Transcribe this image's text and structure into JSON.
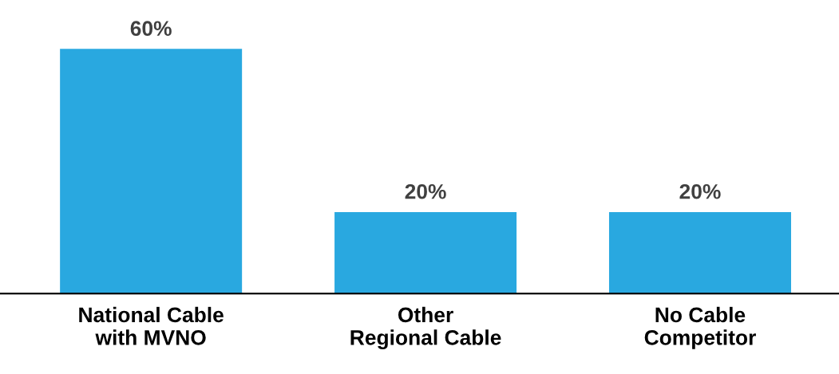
{
  "chart_data": {
    "type": "bar",
    "categories": [
      "National Cable\nwith MVNO",
      "Other\nRegional Cable",
      "No Cable\nCompetitor"
    ],
    "values": [
      60,
      20,
      20
    ],
    "value_labels": [
      "60%",
      "20%",
      "20%"
    ],
    "color": "#29a8e0"
  }
}
